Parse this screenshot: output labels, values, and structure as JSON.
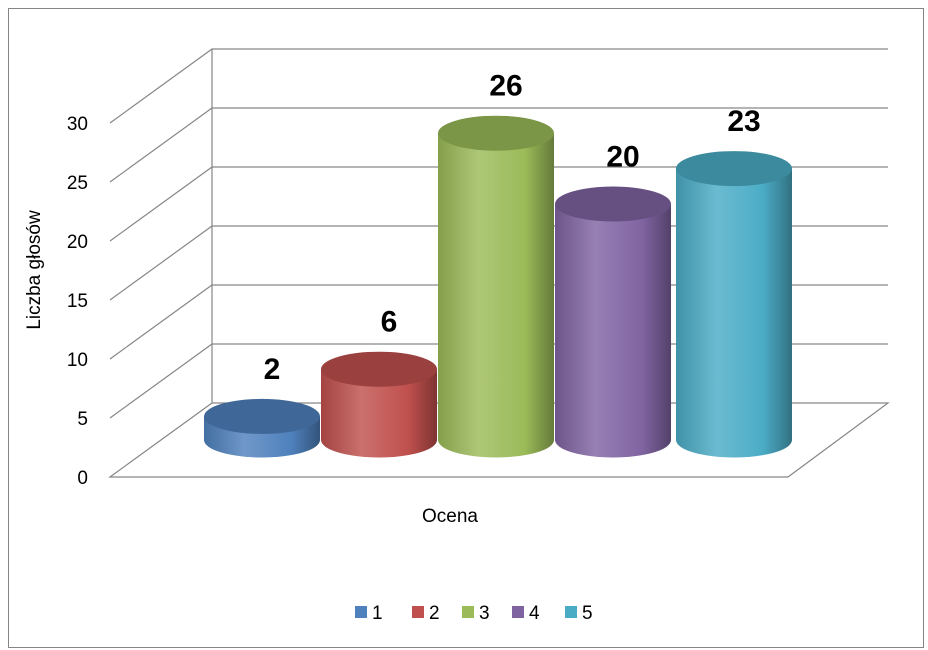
{
  "chart_data": {
    "type": "bar",
    "style": "3d-cylinder",
    "title": "",
    "xlabel": "Ocena",
    "ylabel": "Liczba głosów",
    "ylim": [
      0,
      30
    ],
    "yticks": [
      "0",
      "5",
      "10",
      "15",
      "20",
      "25",
      "30"
    ],
    "grid": true,
    "legend_position": "bottom",
    "series": [
      {
        "name": "1",
        "value": 2,
        "label": "2",
        "color": "#4F81BD"
      },
      {
        "name": "2",
        "value": 6,
        "label": "6",
        "color": "#C0504D"
      },
      {
        "name": "3",
        "value": 26,
        "label": "26",
        "color": "#9BBB59"
      },
      {
        "name": "4",
        "value": 20,
        "label": "20",
        "color": "#8064A2"
      },
      {
        "name": "5",
        "value": 23,
        "label": "23",
        "color": "#4BACC6"
      }
    ]
  }
}
